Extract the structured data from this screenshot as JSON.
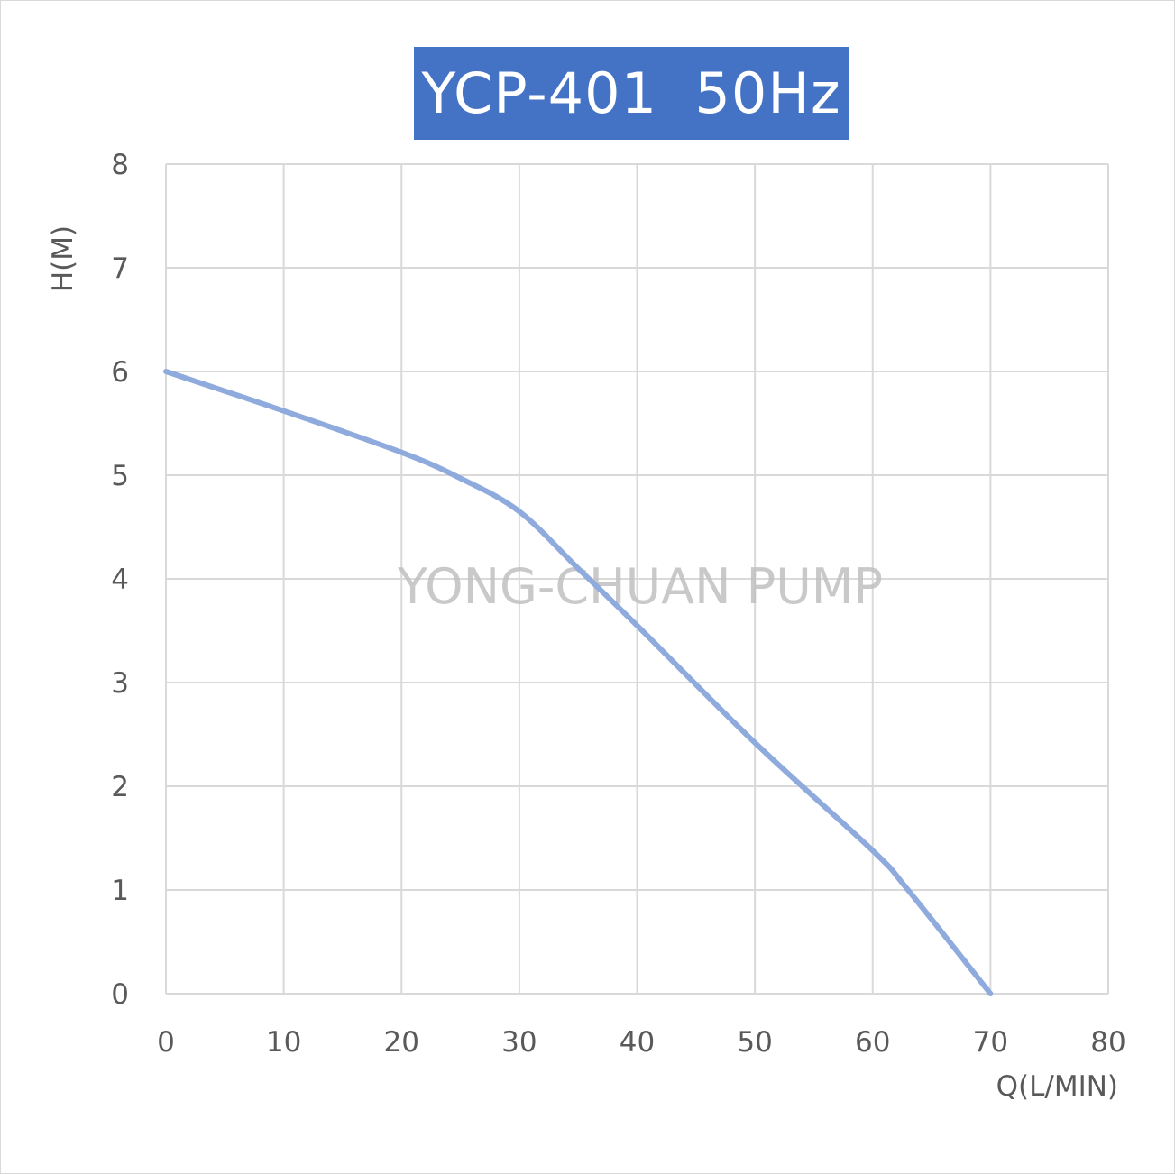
{
  "chart_data": {
    "type": "line",
    "title": "YCP-401  50Hz",
    "xlabel": "Q(L/MIN)",
    "ylabel": "H(M)",
    "xlim": [
      0,
      80
    ],
    "ylim": [
      0,
      8
    ],
    "xticks": [
      0,
      10,
      20,
      30,
      40,
      50,
      60,
      70,
      80
    ],
    "yticks": [
      0,
      1,
      2,
      3,
      4,
      5,
      6,
      7,
      8
    ],
    "grid": true,
    "watermark": "YONG-CHUAN PUMP",
    "series": [
      {
        "color": "#8faadc",
        "x": [
          0,
          10,
          20,
          25,
          30,
          35,
          40,
          50,
          60,
          63,
          70
        ],
        "y": [
          6.0,
          5.62,
          5.22,
          4.97,
          4.65,
          4.1,
          3.55,
          2.42,
          1.38,
          1.0,
          0.0
        ]
      }
    ]
  }
}
